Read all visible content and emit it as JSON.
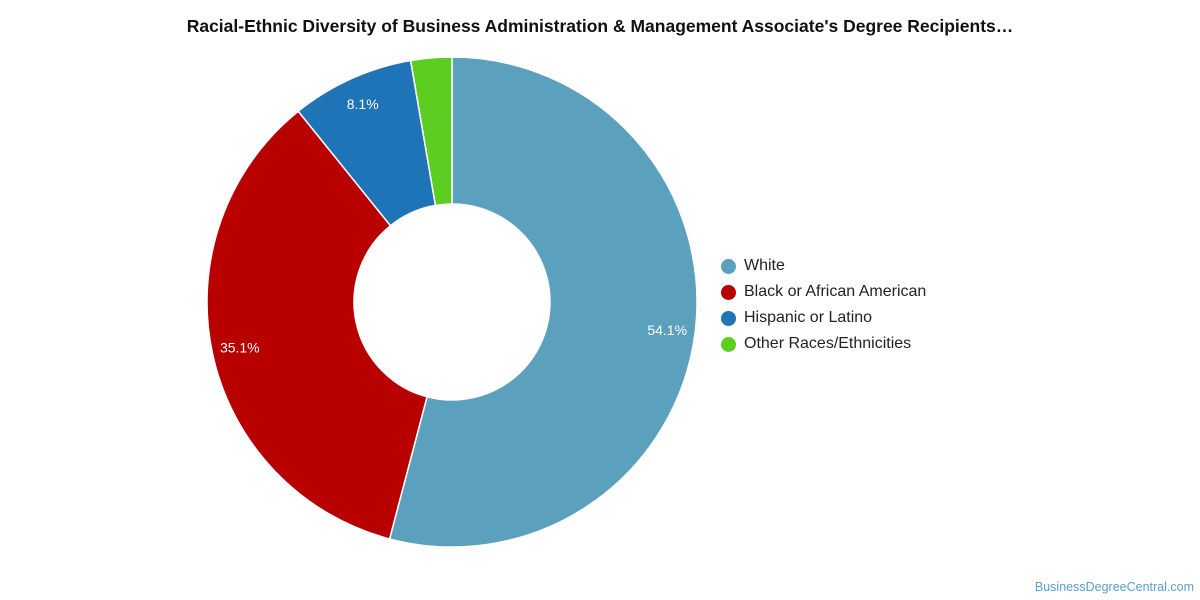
{
  "chart_data": {
    "type": "pie",
    "title": "Racial-Ethnic Diversity of Business Administration & Management Associate's Degree Recipients…",
    "donut": true,
    "legend_position": "right",
    "slices": [
      {
        "label": "White",
        "value": 54.1,
        "display": "54.1%",
        "color": "#5ba0bd"
      },
      {
        "label": "Black or African American",
        "value": 35.1,
        "display": "35.1%",
        "color": "#b90000"
      },
      {
        "label": "Hispanic or Latino",
        "value": 8.1,
        "display": "8.1%",
        "color": "#1f73b7"
      },
      {
        "label": "Other Races/Ethnicities",
        "value": 2.7,
        "display": "",
        "color": "#5dce21"
      }
    ]
  },
  "watermark": "BusinessDegreeCentral.com"
}
